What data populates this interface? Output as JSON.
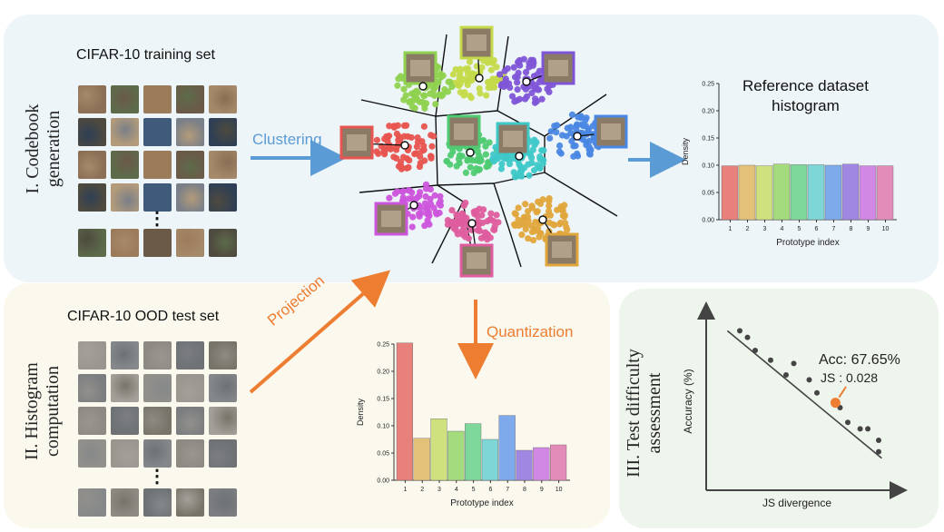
{
  "panels": {
    "codebook": {
      "label_line1": "I. Codebook",
      "label_line2": "generation"
    },
    "histogram": {
      "label_line1": "II. Histogram",
      "label_line2": "computation"
    },
    "assessment": {
      "label_line1": "III. Test difficulty",
      "label_line2": "assessment"
    }
  },
  "train_set_title": "CIFAR-10 training set",
  "ood_set_title": "CIFAR-10 OOD test set",
  "ellipsis": "⋮",
  "arrows": {
    "clustering": "Clustering",
    "projection": "Projection",
    "quantization": "Quantization"
  },
  "colors": {
    "blue_arrow": "#5b9bd5",
    "orange_arrow": "#ed7d31"
  },
  "reference_title_line1": "Reference dataset",
  "reference_title_line2": "histogram",
  "cluster_colors": [
    "#e8544f",
    "#e0a63c",
    "#c5da4a",
    "#8fd250",
    "#4fcb72",
    "#3fc8c8",
    "#4a87e3",
    "#7f55d8",
    "#cc55dc",
    "#de5d9e"
  ],
  "chart_data": [
    {
      "type": "bar",
      "categories": [
        "1",
        "2",
        "3",
        "4",
        "5",
        "6",
        "7",
        "8",
        "9",
        "10"
      ],
      "values": [
        0.099,
        0.1,
        0.099,
        0.102,
        0.101,
        0.101,
        0.1,
        0.102,
        0.099,
        0.099
      ],
      "xlabel": "Prototype index",
      "ylabel": "Density",
      "ylim": [
        0,
        0.25
      ],
      "yticks": [
        "0.00",
        "0.05",
        "0.10",
        "0.15",
        "0.20",
        "0.25"
      ],
      "colors": [
        "#e8807c",
        "#e4c179",
        "#cfe07f",
        "#a4db7d",
        "#7ed89c",
        "#7fd6d6",
        "#7ea9ea",
        "#a087e2",
        "#d088e4",
        "#e48cb8"
      ]
    },
    {
      "type": "bar",
      "categories": [
        "1",
        "2",
        "3",
        "4",
        "5",
        "6",
        "7",
        "8",
        "9",
        "10"
      ],
      "values": [
        0.252,
        0.077,
        0.113,
        0.09,
        0.104,
        0.075,
        0.119,
        0.055,
        0.06,
        0.065
      ],
      "xlabel": "Prototype index",
      "ylabel": "Density",
      "ylim": [
        0,
        0.25
      ],
      "yticks": [
        "0.00",
        "0.05",
        "0.10",
        "0.15",
        "0.20",
        "0.25"
      ],
      "colors": [
        "#e8807c",
        "#e4c179",
        "#cfe07f",
        "#a4db7d",
        "#7ed89c",
        "#7fd6d6",
        "#7ea9ea",
        "#a087e2",
        "#d088e4",
        "#e48cb8"
      ]
    },
    {
      "type": "scatter",
      "x_label": "JS divergence",
      "y_label": "Accuracy (%)",
      "annotation_acc": "Acc: 67.65%",
      "annotation_js": "JS : 0.028",
      "points": [
        [
          0.1,
          0.92
        ],
        [
          0.15,
          0.88
        ],
        [
          0.2,
          0.8
        ],
        [
          0.3,
          0.74
        ],
        [
          0.4,
          0.65
        ],
        [
          0.45,
          0.72
        ],
        [
          0.55,
          0.62
        ],
        [
          0.6,
          0.54
        ],
        [
          0.75,
          0.45
        ],
        [
          0.8,
          0.36
        ],
        [
          0.88,
          0.32
        ],
        [
          0.93,
          0.32
        ],
        [
          1.0,
          0.25
        ],
        [
          1.0,
          0.18
        ],
        [
          0.72,
          0.48
        ]
      ],
      "highlight": [
        0.72,
        0.48
      ]
    }
  ]
}
